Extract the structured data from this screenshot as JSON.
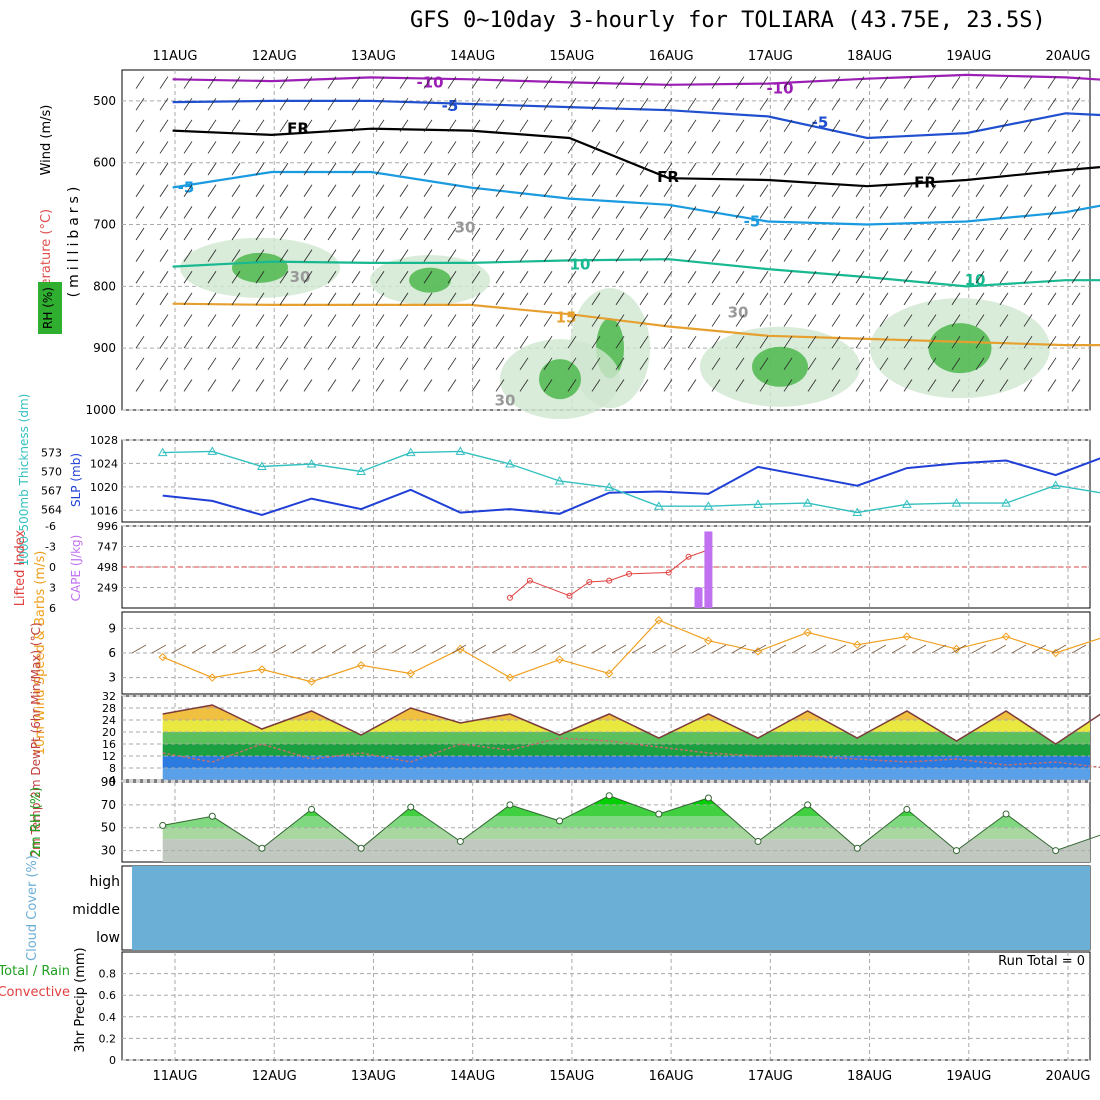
{
  "title": "GFS 0~10day 3-hourly for TOLIARA (43.75E, 23.5S)",
  "colors": {
    "rh_fill": "#2fae2f",
    "temp_purple": "#9b1fb5",
    "temp_blue": "#2050d0",
    "temp_cyan": "#1a9be0",
    "temp_green": "#18b890",
    "temp_orange": "#e6a030",
    "temp_red": "#d0307a",
    "slp_line": "#1f3fd6",
    "thickness_line": "#34c0c0",
    "lifted_index": "#e04040",
    "cape_bar": "#c070f0",
    "wind_speed": "#f0a020",
    "wind_barb": "#7a5a40",
    "cloud_fill": "#6baed6",
    "rh2m_fill": "#00d000"
  },
  "chart_data": [
    {
      "id": "upper_air",
      "type": "heatmap",
      "panel_labels": [
        "RH (%)",
        "Temperature (°C)",
        "Wind (m/s)"
      ],
      "ylabel": "(millibars)",
      "yticks": [
        500,
        600,
        700,
        800,
        900,
        1000
      ],
      "ylim": [
        450,
        1000
      ],
      "x_dates": [
        "11AUG",
        "12AUG",
        "13AUG",
        "14AUG",
        "15AUG",
        "16AUG",
        "17AUG",
        "18AUG",
        "19AUG",
        "20AUG"
      ],
      "contour_labels": [
        "-10",
        "-10",
        "-5",
        "-5",
        "FR",
        "FR",
        "FR",
        "-5",
        "-5",
        "10",
        "10",
        "15",
        "30",
        "30",
        "30",
        "30"
      ],
      "isotherms": [
        {
          "label": "-10",
          "x": [
            0,
            1,
            2,
            3,
            4,
            5,
            6,
            7,
            8,
            9,
            10
          ],
          "y": [
            465,
            468,
            462,
            465,
            470,
            474,
            472,
            464,
            458,
            462,
            472
          ]
        },
        {
          "label": "-5",
          "x": [
            0,
            1,
            2,
            3,
            4,
            5,
            6,
            7,
            8,
            9,
            10
          ],
          "y": [
            502,
            500,
            500,
            505,
            510,
            515,
            525,
            560,
            552,
            520,
            528
          ]
        },
        {
          "label": "FR",
          "x": [
            0,
            1,
            2,
            3,
            4,
            5,
            6,
            7,
            8,
            9,
            10
          ],
          "y": [
            548,
            555,
            545,
            548,
            560,
            625,
            628,
            638,
            628,
            612,
            598
          ]
        },
        {
          "label": "-5",
          "x": [
            0,
            1,
            2,
            3,
            4,
            5,
            6,
            7,
            8,
            9,
            10
          ],
          "y": [
            640,
            615,
            615,
            640,
            658,
            668,
            695,
            700,
            695,
            680,
            650
          ]
        },
        {
          "label": "10",
          "x": [
            0,
            1,
            2,
            3,
            4,
            5,
            6,
            7,
            8,
            9,
            10
          ],
          "y": [
            768,
            760,
            762,
            762,
            758,
            756,
            772,
            785,
            800,
            790,
            790
          ]
        },
        {
          "label": "15",
          "x": [
            0,
            1,
            2,
            3,
            4,
            5,
            6,
            7,
            8,
            9,
            10
          ],
          "y": [
            828,
            830,
            830,
            830,
            845,
            865,
            880,
            885,
            890,
            895,
            895
          ]
        }
      ]
    },
    {
      "id": "slp_thickness",
      "type": "line",
      "ylabel_left": "1000-500mb Thickness (dm)",
      "ylabel_right": "SLP (mb)",
      "yticks_left": [
        564,
        567,
        570,
        573
      ],
      "yticks_right": [
        1016,
        1020,
        1024,
        1028
      ],
      "ylim_left": [
        562,
        575
      ],
      "ylim_right": [
        1014,
        1028
      ],
      "series": [
        {
          "name": "SLP (mb)",
          "x": [
            0,
            0.5,
            1,
            1.5,
            2,
            2.5,
            3,
            3.5,
            4,
            4.5,
            5,
            5.5,
            6,
            6.5,
            7,
            7.5,
            8,
            8.5,
            9,
            9.5,
            10
          ],
          "values": [
            1018.5,
            1017.6,
            1015.2,
            1018.0,
            1016.2,
            1019.5,
            1015.6,
            1016.2,
            1015.4,
            1019.0,
            1019.2,
            1018.8,
            1023.4,
            1021.8,
            1020.2,
            1023.2,
            1024.0,
            1024.5,
            1022.0,
            1025.2,
            1025.0
          ]
        },
        {
          "name": "1000-500mb Thickness (dm)",
          "x": [
            0,
            0.5,
            1,
            1.5,
            2,
            2.5,
            3,
            3.5,
            4,
            4.5,
            5,
            5.5,
            6,
            6.5,
            7,
            7.5,
            8,
            8.5,
            9,
            9.5,
            10
          ],
          "values": [
            573.0,
            573.2,
            570.8,
            571.2,
            570.0,
            573.0,
            573.2,
            571.2,
            568.5,
            567.5,
            564.5,
            564.5,
            564.8,
            565.0,
            563.5,
            564.8,
            565.0,
            565.0,
            567.8,
            566.5,
            566.2
          ]
        }
      ]
    },
    {
      "id": "lifted_cape",
      "type": "bar",
      "ylabel_left": "Lifted Index",
      "ylabel_right": "CAPE (J/kg)",
      "yticks_left": [
        -6,
        -3,
        0,
        3,
        6
      ],
      "yticks_right": [
        249,
        498,
        747,
        996
      ],
      "ylim_left": [
        -6,
        6
      ],
      "ylim_right": [
        0,
        996
      ],
      "series": [
        {
          "name": "Lifted Index",
          "x": [
            3.5,
            3.7,
            4.1,
            4.3,
            4.5,
            4.7,
            5.1,
            5.3,
            5.5
          ],
          "values": [
            4.5,
            2.0,
            4.2,
            2.2,
            2.0,
            1.0,
            0.8,
            -1.5,
            -2.5
          ]
        },
        {
          "name": "CAPE (J/kg)",
          "x": [
            5.4,
            5.5
          ],
          "values": [
            250,
            930
          ]
        }
      ]
    },
    {
      "id": "wind10m",
      "type": "line",
      "ylabel": "10m Wind Speed & Barbs (m/s)",
      "yticks": [
        3,
        6,
        9
      ],
      "ylim": [
        1,
        11
      ],
      "series": [
        {
          "name": "10m Wind Speed",
          "x": [
            0,
            0.5,
            1,
            1.5,
            2,
            2.5,
            3,
            3.5,
            4,
            4.5,
            5,
            5.5,
            6,
            6.5,
            7,
            7.5,
            8,
            8.5,
            9,
            9.5,
            10
          ],
          "values": [
            5.5,
            3.0,
            4.0,
            2.5,
            4.5,
            3.5,
            6.5,
            3.0,
            5.2,
            3.5,
            10.0,
            7.5,
            6.2,
            8.5,
            7.0,
            8.0,
            6.5,
            8.0,
            6.0,
            8.0,
            5.0
          ]
        }
      ]
    },
    {
      "id": "temp2m",
      "type": "area",
      "ylabel": "2m Temp 2m DewPt (6hr Min/Max) (°C)",
      "yticks": [
        4,
        8,
        12,
        16,
        20,
        24,
        28,
        32
      ],
      "ylim": [
        4,
        32
      ],
      "series": [
        {
          "name": "2m Temp",
          "x": [
            0,
            0.5,
            1,
            1.5,
            2,
            2.5,
            3,
            3.5,
            4,
            4.5,
            5,
            5.5,
            6,
            6.5,
            7,
            7.5,
            8,
            8.5,
            9,
            9.5,
            10
          ],
          "values": [
            26,
            29,
            21,
            27,
            19,
            28,
            23,
            26,
            19,
            26,
            18,
            26,
            18,
            27,
            18,
            27,
            17,
            27,
            16,
            27,
            19
          ]
        },
        {
          "name": "2m DewPt",
          "x": [
            0,
            0.5,
            1,
            1.5,
            2,
            2.5,
            3,
            3.5,
            4,
            4.5,
            5,
            5.5,
            6,
            6.5,
            7,
            7.5,
            8,
            8.5,
            9,
            9.5,
            10
          ],
          "values": [
            13,
            10,
            16,
            11,
            13,
            10,
            16,
            14,
            18,
            17,
            15,
            13,
            12,
            12,
            11,
            10,
            11,
            9,
            10,
            8,
            9
          ]
        }
      ]
    },
    {
      "id": "rh2m",
      "type": "area",
      "ylabel": "2m RH (%)",
      "yticks": [
        30,
        50,
        70,
        90
      ],
      "ylim": [
        20,
        90
      ],
      "series": [
        {
          "name": "2m RH",
          "x": [
            0,
            0.5,
            1,
            1.5,
            2,
            2.5,
            3,
            3.5,
            4,
            4.5,
            5,
            5.5,
            6,
            6.5,
            7,
            7.5,
            8,
            8.5,
            9,
            9.5,
            10
          ],
          "values": [
            52,
            60,
            32,
            66,
            32,
            68,
            38,
            70,
            56,
            78,
            62,
            76,
            38,
            70,
            32,
            66,
            30,
            62,
            30,
            45,
            60
          ]
        }
      ]
    },
    {
      "id": "cloud_cover",
      "type": "area",
      "ylabel": "Cloud Cover (%)",
      "yticks": [
        "high",
        "middle",
        "low"
      ]
    },
    {
      "id": "precip",
      "type": "bar",
      "ylabel_left": "Total / Rain Convective",
      "ylabel": "3hr Precip (mm)",
      "yticks": [
        0,
        0.2,
        0.4,
        0.6,
        0.8
      ],
      "ylim": [
        0,
        1
      ],
      "annotation": "Run Total = 0",
      "values": []
    }
  ]
}
